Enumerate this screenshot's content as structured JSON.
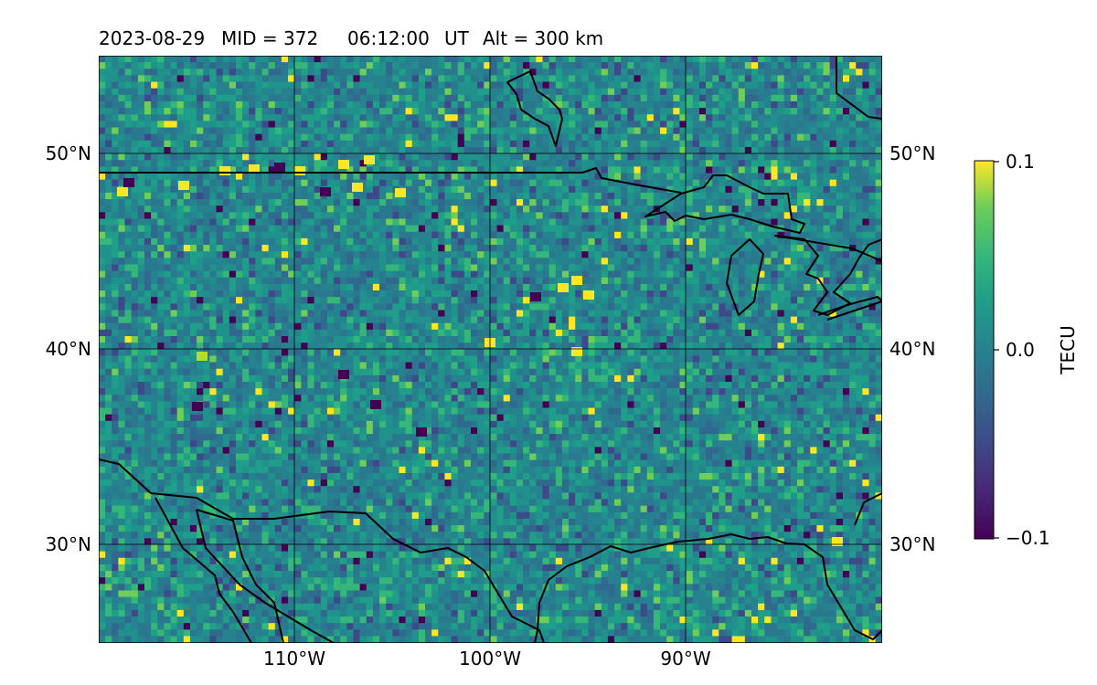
{
  "title": {
    "date": "2023-08-29",
    "mid": "MID = 372",
    "time": "06:12:00",
    "ut": "UT",
    "alt": "Alt = 300 km"
  },
  "axes": {
    "lat_labels": [
      "50°N",
      "40°N",
      "30°N"
    ],
    "lon_labels": [
      "110°W",
      "100°W",
      "90°W"
    ]
  },
  "colorbar": {
    "label": "TECU",
    "tick_labels": [
      "0.1",
      "0.0",
      "−0.1"
    ],
    "colormap": "viridis",
    "range": [
      -0.1,
      0.1
    ]
  },
  "map": {
    "type": "heatmap",
    "lon_range": [
      -120,
      -80
    ],
    "lat_range": [
      25,
      55
    ],
    "gridlines": true,
    "features": [
      "coastlines",
      "US-Canada border",
      "Great Lakes",
      "Gulf of Mexico",
      "Gulf of California"
    ]
  }
}
